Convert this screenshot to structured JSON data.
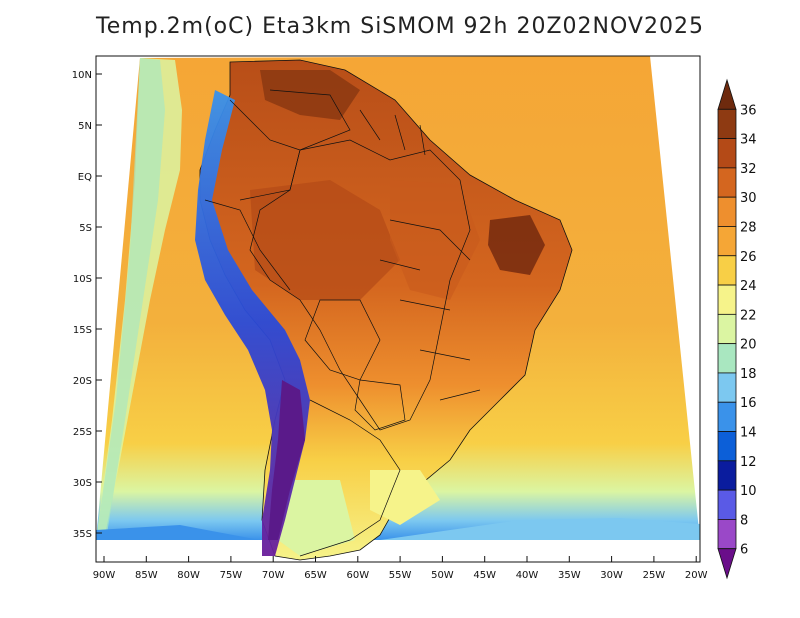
{
  "title": "Temp.2m(oC) Eta3km SiSMOM 92h 20Z02NOV2025",
  "lat_ticks": [
    "10N",
    "5N",
    "EQ",
    "5S",
    "10S",
    "15S",
    "20S",
    "25S",
    "30S",
    "35S"
  ],
  "lon_ticks": [
    "90W",
    "85W",
    "80W",
    "75W",
    "70W",
    "65W",
    "60W",
    "55W",
    "50W",
    "45W",
    "40W",
    "35W",
    "30W",
    "25W",
    "20W"
  ],
  "colorbar": {
    "labels": [
      "36",
      "34",
      "32",
      "30",
      "28",
      "26",
      "24",
      "22",
      "20",
      "18",
      "16",
      "14",
      "12",
      "10",
      "8",
      "6"
    ],
    "colors": [
      "#6e2a0e",
      "#8e3a12",
      "#b44a17",
      "#d4661f",
      "#ee8f2e",
      "#f5a636",
      "#f8cf46",
      "#f6f38a",
      "#dbf5a2",
      "#a9e7c0",
      "#7cc8f0",
      "#3a92ea",
      "#0c5fd8",
      "#0a1c9e",
      "#5a5ae6",
      "#9a48c8",
      "#6a0e8a"
    ]
  },
  "colors": {
    "ocean": "#f2b040",
    "land": "#d9661f",
    "land_hot": "#9a3f14",
    "andes_cold": "#3a5ae0",
    "south_cold": "#7cc8f0"
  }
}
